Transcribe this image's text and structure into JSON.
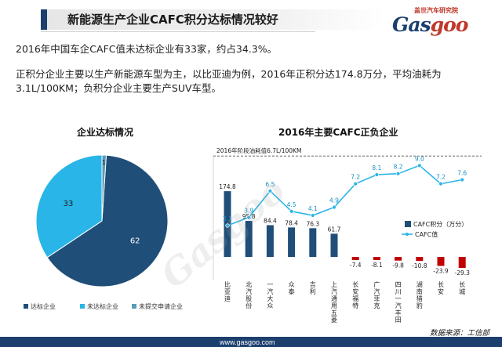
{
  "header": {
    "title": "新能源生产企业CAFC积分达标情况较好"
  },
  "logo": {
    "tagline": "盖世汽车研究院",
    "word_a": "Gas",
    "word_b": "goo"
  },
  "text": {
    "p1": "2016年中国车企CAFC值未达标企业有33家，约占34.3%。",
    "p2": "正积分企业主要以生产新能源车型为主，以比亚迪为例，2016年正积分达174.8万分，平均油耗为3.1L/100KM；负积分企业主要生产SUV车型。"
  },
  "watermark": "Gasgoo",
  "footer": {
    "url": "www.gasgoo.com",
    "source": "数据来源：工信部"
  },
  "colors": {
    "navy": "#1f4e79",
    "sky": "#29b5e8",
    "red": "#c00000",
    "accent": "#1c3f6e"
  },
  "chart_data": [
    {
      "type": "pie",
      "title": "企业达标情况",
      "categories": [
        "达标企业",
        "未达标企业",
        "未提交申请企业"
      ],
      "values": [
        62,
        33,
        1
      ],
      "colors": [
        "#1f4e79",
        "#29b5e8",
        "#5a9bb8"
      ],
      "legend": "bottom"
    },
    {
      "type": "bar",
      "title": "2016年主要CAFC正负企业",
      "categories": [
        "比亚迪",
        "北汽股份",
        "一汽大众",
        "众泰",
        "吉利",
        "上汽通用五菱",
        "长安福特",
        "广汽菲克",
        "四川一汽丰田",
        "湖南猎豹",
        "长安",
        "长城"
      ],
      "series": [
        {
          "name": "CAFC积分（万分）",
          "type": "bar",
          "values": [
            174.8,
            95.8,
            84.4,
            78.4,
            76.3,
            61.7,
            -7.4,
            -8.1,
            -9.8,
            -10.8,
            -23.9,
            -29.3
          ]
        },
        {
          "name": "CAFC值",
          "type": "line",
          "values": [
            3.1,
            3.9,
            6.5,
            4.5,
            4.1,
            4.9,
            7.2,
            8.1,
            8.2,
            9.0,
            7.2,
            7.6
          ]
        }
      ],
      "reference_line": {
        "label": "2016年阶段油耗值6.7L/100KM",
        "value": 6.7
      },
      "legend": "right",
      "grid": false
    }
  ]
}
